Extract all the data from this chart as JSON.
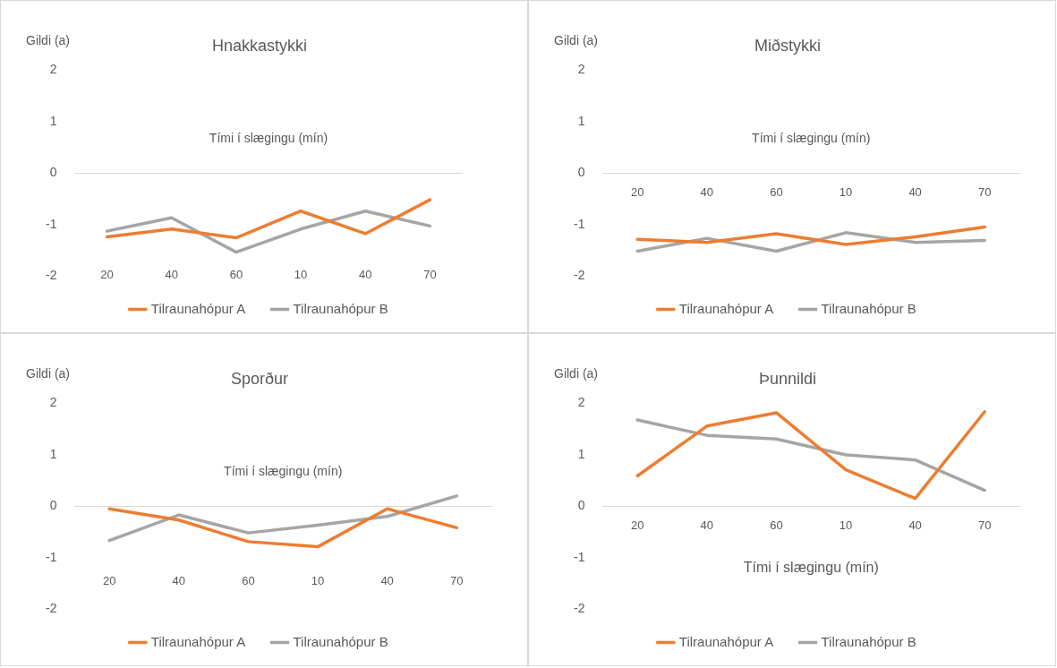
{
  "chart_data": [
    {
      "type": "line",
      "title": "Hnakkastykki",
      "ylabel": "Gildi (a)",
      "xlabel": "Tími í slægingu (mín)",
      "categories": [
        "20",
        "40",
        "60",
        "10",
        "40",
        "70"
      ],
      "ylim": [
        -2,
        2
      ],
      "yticks": [
        -2,
        -1,
        0,
        1,
        2
      ],
      "legend": "bottom",
      "series": [
        {
          "name": "Tilraunahópur A",
          "color": "#ed7d31",
          "values": [
            -1.24,
            -1.09,
            -1.26,
            -0.74,
            -1.18,
            -0.52
          ]
        },
        {
          "name": "Tilraunahópur B",
          "color": "#a5a5a5",
          "values": [
            -1.13,
            -0.87,
            -1.54,
            -1.09,
            -0.74,
            -1.03
          ]
        }
      ]
    },
    {
      "type": "line",
      "title": "Miðstykki",
      "ylabel": "Gildi (a)",
      "xlabel": "Tími í slægingu (mín)",
      "categories": [
        "20",
        "40",
        "60",
        "10",
        "40",
        "70"
      ],
      "ylim": [
        -2,
        2
      ],
      "yticks": [
        -2,
        -1,
        0,
        1,
        2
      ],
      "legend": "bottom",
      "series": [
        {
          "name": "Tilraunahópur A",
          "color": "#ed7d31",
          "values": [
            -1.29,
            -1.35,
            -1.18,
            -1.39,
            -1.24,
            -1.05
          ]
        },
        {
          "name": "Tilraunahópur B",
          "color": "#a5a5a5",
          "values": [
            -1.52,
            -1.27,
            -1.52,
            -1.16,
            -1.35,
            -1.31
          ]
        }
      ]
    },
    {
      "type": "line",
      "title": "Sporður",
      "ylabel": "Gildi (a)",
      "xlabel": "Tími í slægingu (mín)",
      "categories": [
        "20",
        "40",
        "60",
        "10",
        "40",
        "70"
      ],
      "ylim": [
        -2,
        2
      ],
      "yticks": [
        -2,
        -1,
        0,
        1,
        2
      ],
      "legend": "bottom",
      "series": [
        {
          "name": "Tilraunahópur A",
          "color": "#ed7d31",
          "values": [
            -0.05,
            -0.27,
            -0.69,
            -0.79,
            -0.05,
            -0.42
          ]
        },
        {
          "name": "Tilraunahópur B",
          "color": "#a5a5a5",
          "values": [
            -0.67,
            -0.17,
            -0.52,
            -0.37,
            -0.2,
            0.2
          ]
        }
      ]
    },
    {
      "type": "line",
      "title": "Þunnildi",
      "ylabel": "Gildi (a)",
      "xlabel": "Tími í slægingu (mín)",
      "categories": [
        "20",
        "40",
        "60",
        "10",
        "40",
        "70"
      ],
      "ylim": [
        -2,
        2
      ],
      "yticks": [
        -2,
        -1,
        0,
        1,
        2
      ],
      "legend": "bottom",
      "series": [
        {
          "name": "Tilraunahópur A",
          "color": "#ed7d31",
          "values": [
            0.59,
            1.56,
            1.82,
            0.71,
            0.15,
            1.84
          ]
        },
        {
          "name": "Tilraunahópur B",
          "color": "#a5a5a5",
          "values": [
            1.68,
            1.38,
            1.31,
            1.0,
            0.9,
            0.31
          ]
        }
      ]
    }
  ]
}
